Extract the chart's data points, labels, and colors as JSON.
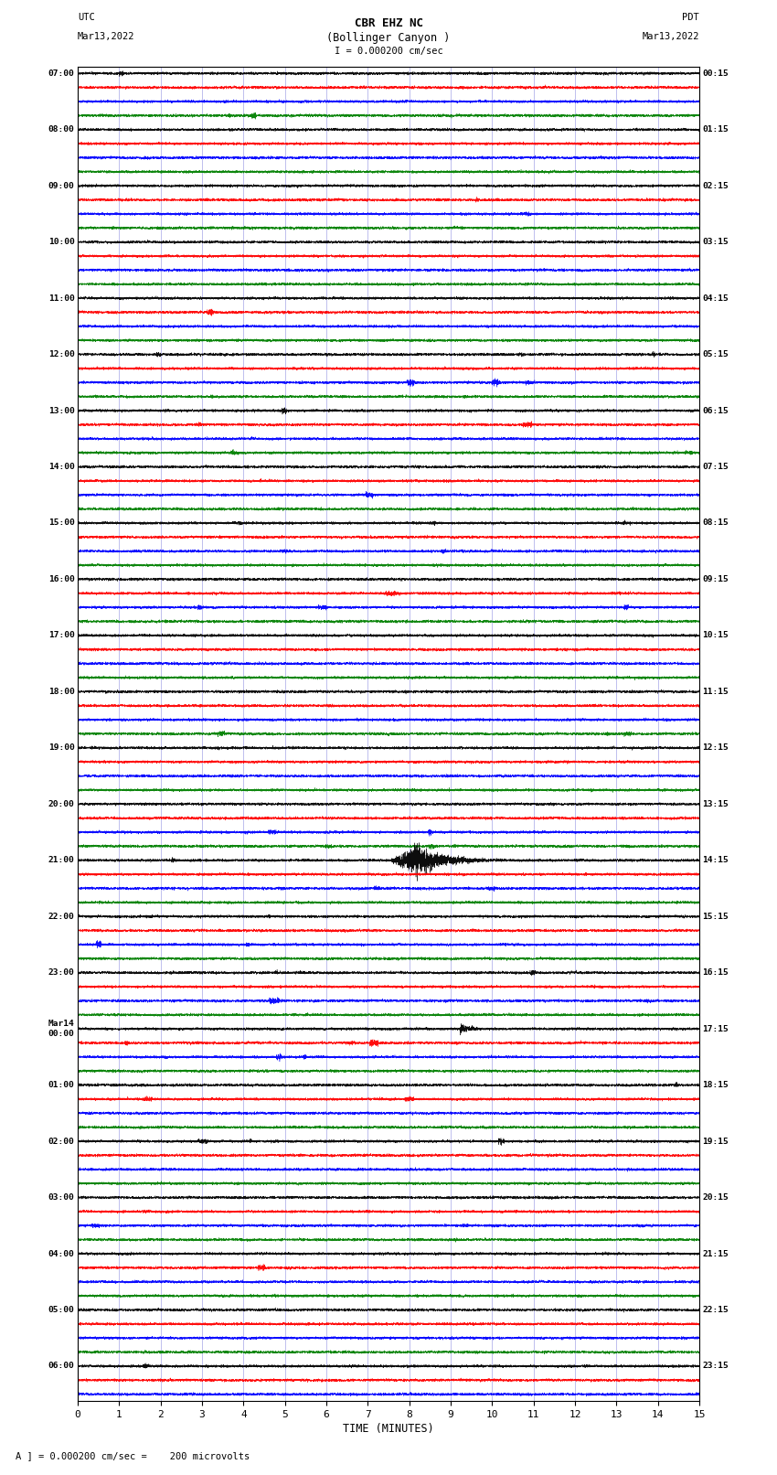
{
  "title_line1": "CBR EHZ NC",
  "title_line2": "(Bollinger Canyon )",
  "scale_label": "I = 0.000200 cm/sec",
  "left_label_top": "UTC",
  "left_label_date": "Mar13,2022",
  "right_label_top": "PDT",
  "right_label_date": "Mar13,2022",
  "bottom_label": "TIME (MINUTES)",
  "bottom_note": "A ] = 0.000200 cm/sec =    200 microvolts",
  "xlim": [
    0,
    15
  ],
  "xticks": [
    0,
    1,
    2,
    3,
    4,
    5,
    6,
    7,
    8,
    9,
    10,
    11,
    12,
    13,
    14,
    15
  ],
  "background_color": "#ffffff",
  "trace_colors": [
    "black",
    "red",
    "blue",
    "green"
  ],
  "num_rows": 95,
  "utc_labels": [
    "07:00",
    "",
    "",
    "",
    "08:00",
    "",
    "",
    "",
    "09:00",
    "",
    "",
    "",
    "10:00",
    "",
    "",
    "",
    "11:00",
    "",
    "",
    "",
    "12:00",
    "",
    "",
    "",
    "13:00",
    "",
    "",
    "",
    "14:00",
    "",
    "",
    "",
    "15:00",
    "",
    "",
    "",
    "16:00",
    "",
    "",
    "",
    "17:00",
    "",
    "",
    "",
    "18:00",
    "",
    "",
    "",
    "19:00",
    "",
    "",
    "",
    "20:00",
    "",
    "",
    "",
    "21:00",
    "",
    "",
    "",
    "22:00",
    "",
    "",
    "",
    "23:00",
    "",
    "",
    "",
    "Mar14\n00:00",
    "",
    "",
    "",
    "01:00",
    "",
    "",
    "",
    "02:00",
    "",
    "",
    "",
    "03:00",
    "",
    "",
    "",
    "04:00",
    "",
    "",
    "",
    "05:00",
    "",
    "",
    "",
    "06:00",
    "",
    ""
  ],
  "pdt_labels": [
    "00:15",
    "",
    "",
    "",
    "01:15",
    "",
    "",
    "",
    "02:15",
    "",
    "",
    "",
    "03:15",
    "",
    "",
    "",
    "04:15",
    "",
    "",
    "",
    "05:15",
    "",
    "",
    "",
    "06:15",
    "",
    "",
    "",
    "07:15",
    "",
    "",
    "",
    "08:15",
    "",
    "",
    "",
    "09:15",
    "",
    "",
    "",
    "10:15",
    "",
    "",
    "",
    "11:15",
    "",
    "",
    "",
    "12:15",
    "",
    "",
    "",
    "13:15",
    "",
    "",
    "",
    "14:15",
    "",
    "",
    "",
    "15:15",
    "",
    "",
    "",
    "16:15",
    "",
    "",
    "",
    "17:15",
    "",
    "",
    "",
    "18:15",
    "",
    "",
    "",
    "19:15",
    "",
    "",
    "",
    "20:15",
    "",
    "",
    "",
    "21:15",
    "",
    "",
    "",
    "22:15",
    "",
    "",
    "",
    "23:15",
    "",
    ""
  ],
  "seismic_event_row": 56,
  "seismic_event_row2": 68,
  "noise_seed": 42
}
